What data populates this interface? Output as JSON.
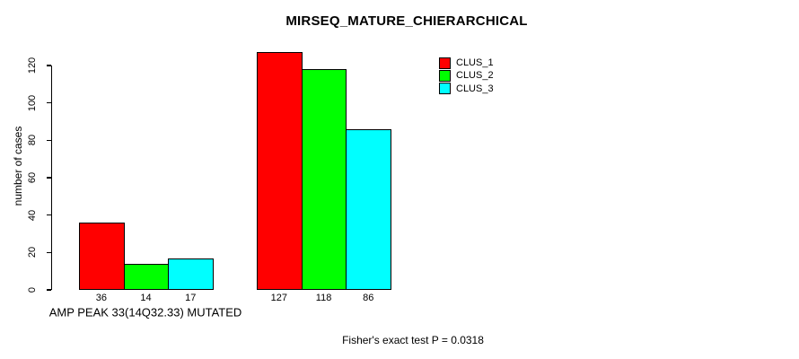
{
  "chart_data": {
    "type": "bar",
    "title": "MIRSEQ_MATURE_CHIERARCHICAL",
    "ylabel": "number of cases",
    "xlabel": "",
    "categories": [
      "AMP PEAK 33(14Q32.33) MUTATED",
      ""
    ],
    "series": [
      {
        "name": "CLUS_1",
        "color": "#ff0000",
        "values": [
          36,
          127
        ]
      },
      {
        "name": "CLUS_2",
        "color": "#00ff00",
        "values": [
          14,
          118
        ]
      },
      {
        "name": "CLUS_3",
        "color": "#00ffff",
        "values": [
          17,
          86
        ]
      }
    ],
    "bar_value_labels": [
      [
        "36",
        "14",
        "17"
      ],
      [
        "127",
        "118",
        "86"
      ]
    ],
    "yticks": [
      0,
      20,
      40,
      60,
      80,
      100,
      120
    ],
    "ylim": [
      0,
      130
    ],
    "grid": false,
    "legend_position": "top-right",
    "legend_entries": [
      "CLUS_1",
      "CLUS_2",
      "CLUS_3"
    ],
    "annotation": "Fisher's exact test P = 0.0318",
    "colors": {
      "background": "#ffffff",
      "axis": "#000000",
      "text": "#000000"
    }
  }
}
